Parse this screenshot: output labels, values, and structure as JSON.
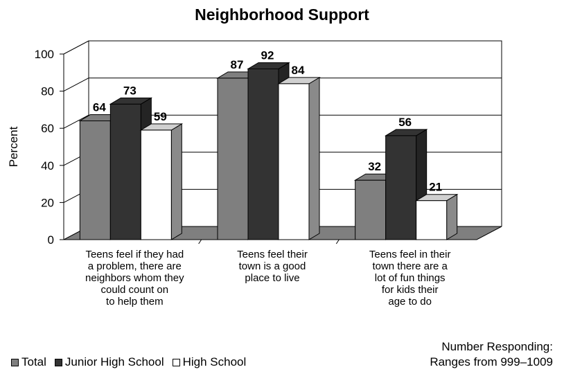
{
  "chart_data": {
    "type": "bar",
    "title": "Neighborhood Support",
    "ylabel": "Percent",
    "xlabel": "",
    "ylim": [
      0,
      100
    ],
    "yticks": [
      0,
      20,
      40,
      60,
      80,
      100
    ],
    "grid": true,
    "legend_position": "bottom-left",
    "categories": [
      [
        "Teens feel if they had",
        "a problem, there are",
        "neighbors whom they",
        "could count on",
        "to help them"
      ],
      [
        "Teens feel their",
        "town is a good",
        "place to live"
      ],
      [
        "Teens feel in their",
        "town there are a",
        "lot of fun things",
        "for kids their",
        "age to do"
      ]
    ],
    "series": [
      {
        "name": "Total",
        "values": [
          64,
          87,
          32
        ],
        "color": "#7f7f7f"
      },
      {
        "name": "Junior High School",
        "values": [
          73,
          92,
          56
        ],
        "color": "#333333"
      },
      {
        "name": "High School",
        "values": [
          59,
          84,
          21
        ],
        "color": "#ffffff"
      }
    ]
  },
  "legend": {
    "items": [
      {
        "label": "Total",
        "color": "#7f7f7f"
      },
      {
        "label": "Junior High School",
        "color": "#333333"
      },
      {
        "label": "High School",
        "color": "#ffffff"
      }
    ]
  },
  "note": {
    "line1": "Number Responding:",
    "line2": "Ranges from 999–1009"
  }
}
